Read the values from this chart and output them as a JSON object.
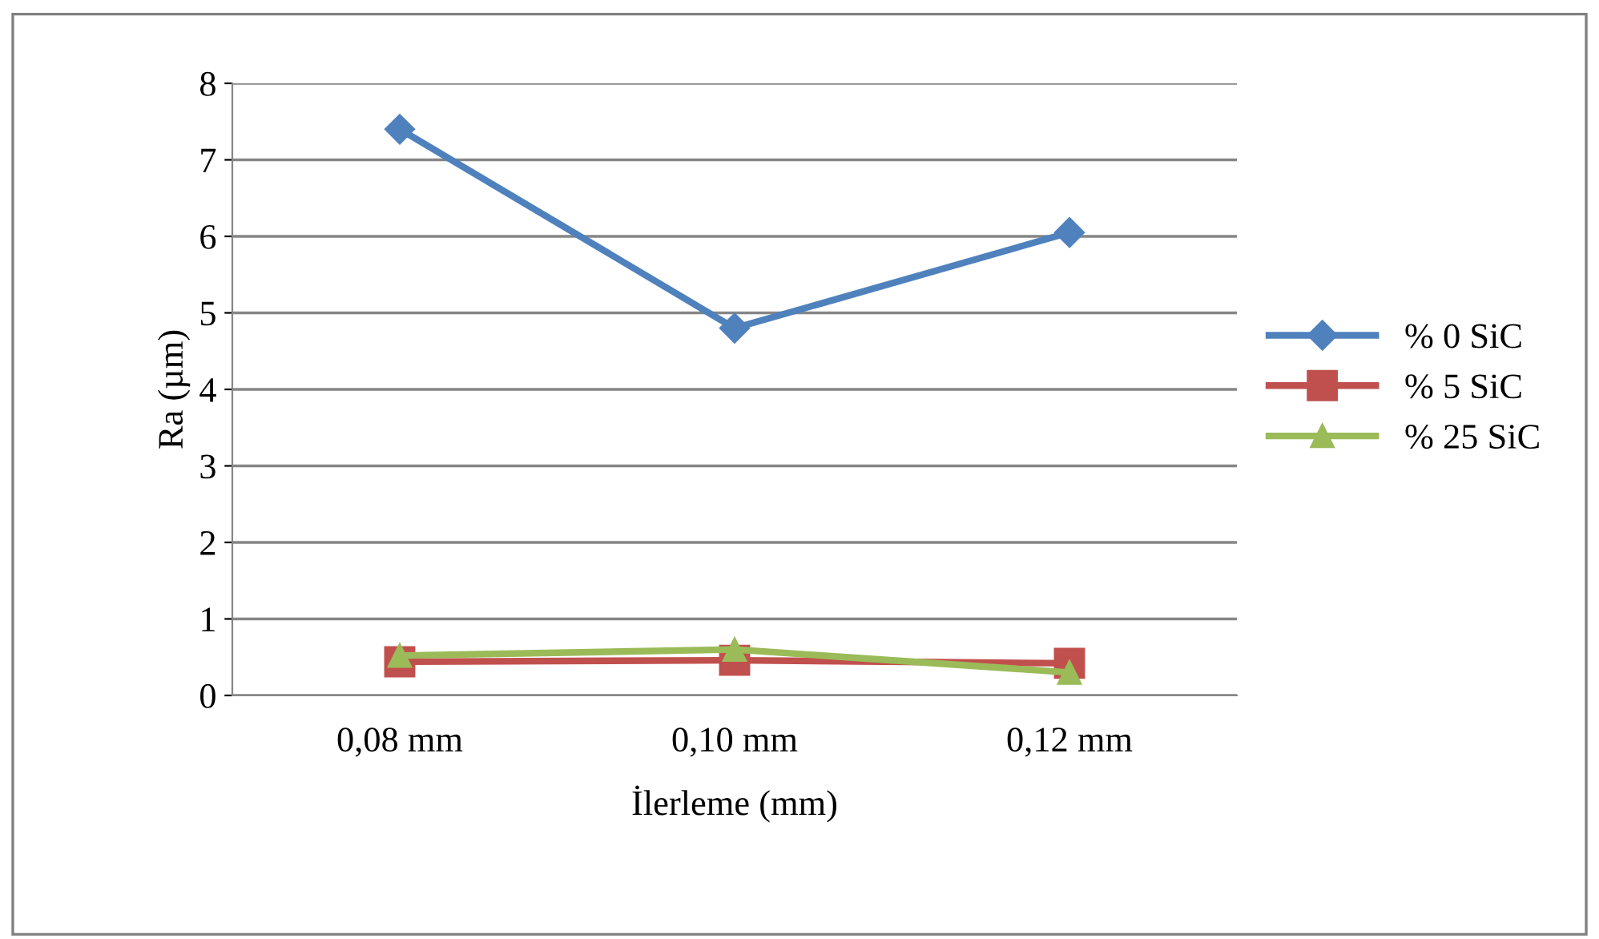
{
  "chart_data": {
    "type": "line",
    "xlabel": "İlerleme (mm)",
    "ylabel": "Ra (µm)",
    "categories": [
      "0,08 mm",
      "0,10 mm",
      "0,12 mm"
    ],
    "series": [
      {
        "name": "% 0 SiC",
        "color": "#4f81bd",
        "marker": "diamond",
        "values": [
          7.4,
          4.8,
          6.05
        ]
      },
      {
        "name": "% 5 SiC",
        "color": "#c0504d",
        "marker": "square",
        "values": [
          0.44,
          0.46,
          0.42
        ]
      },
      {
        "name": "% 25 SiC",
        "color": "#9bbb59",
        "marker": "triangle",
        "values": [
          0.52,
          0.6,
          0.3
        ]
      }
    ],
    "ylim": [
      0,
      8
    ],
    "yticks": [
      0,
      1,
      2,
      3,
      4,
      5,
      6,
      7,
      8
    ],
    "grid": "y",
    "legend": "right",
    "line_style": "solid"
  }
}
